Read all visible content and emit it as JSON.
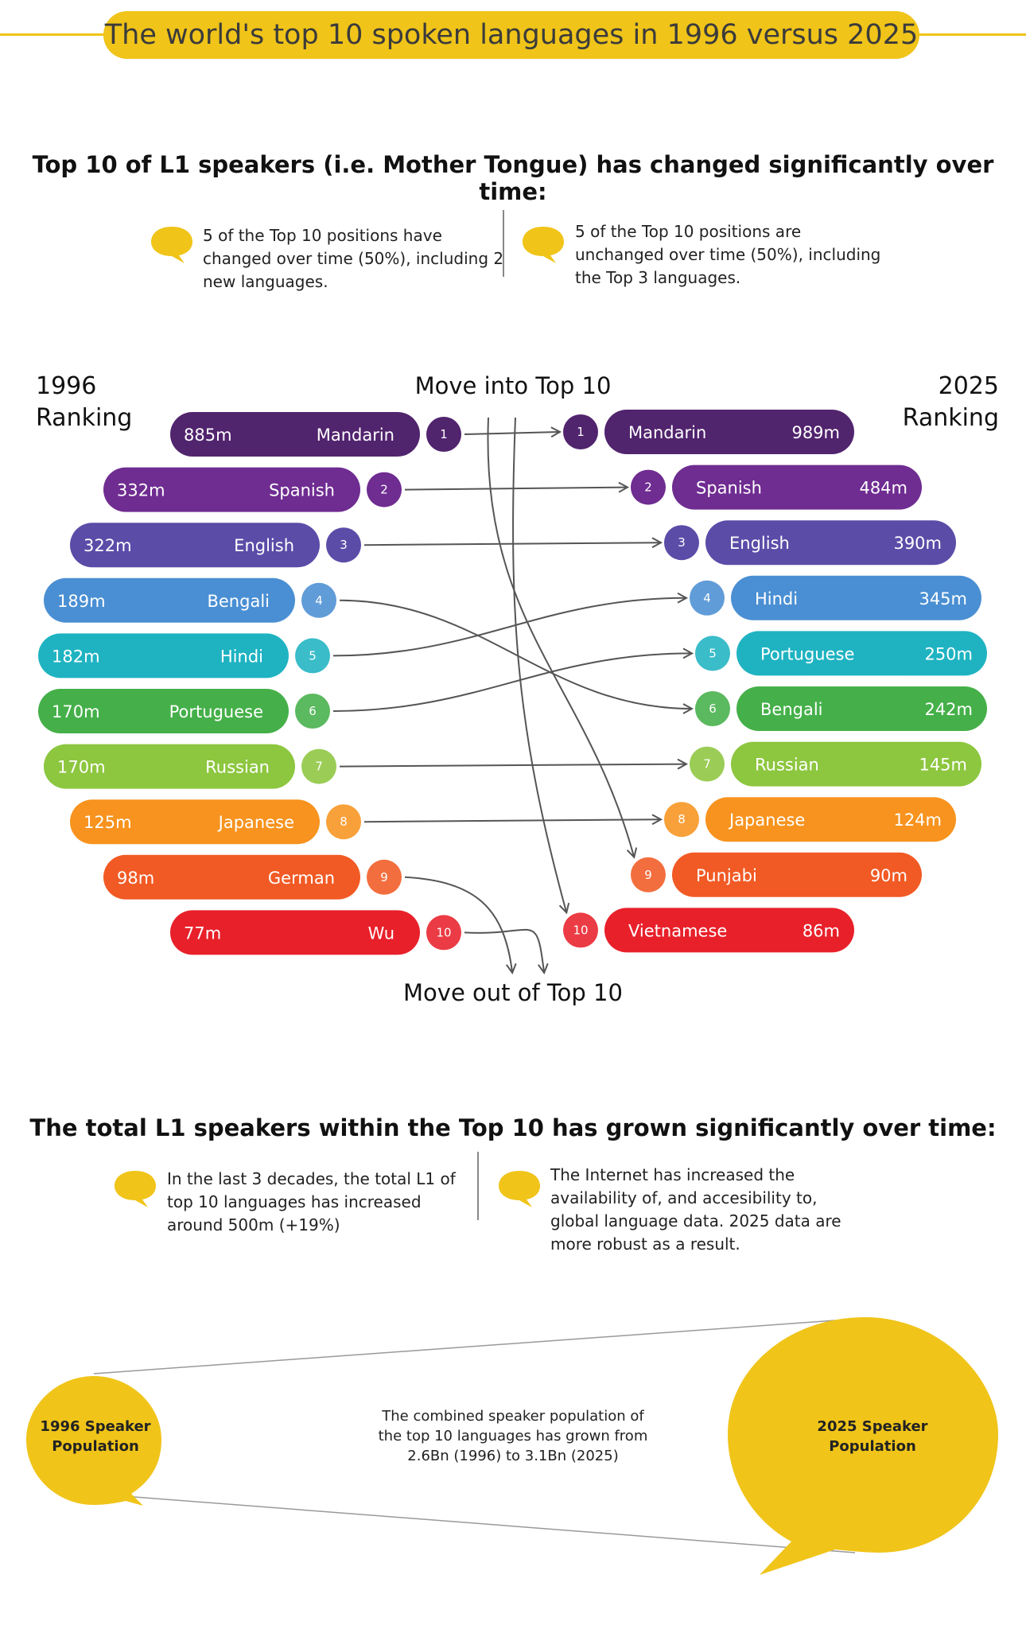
{
  "title": "The world's top 10 spoken languages in 1996 versus 2025",
  "section1": {
    "heading": "Top 10 of L1 speakers (i.e. Mother Tongue) has changed significantly over time:",
    "note_left": "5 of the Top 10 positions have changed over time (50%), including 2 new languages.",
    "note_right": "5 of the Top 10 positions are unchanged over time (50%), including the Top 3 languages."
  },
  "section2": {
    "heading": "The total L1 speakers within the Top 10 has grown significantly over time:",
    "note_left": "In the last 3 decades, the total L1 of top 10 languages has increased around 500m (+19%)",
    "note_right": "The Internet has increased the availability of, and accesibility to, global language data. 2025 data are more robust as a result."
  },
  "population": {
    "label_1996": "1996 Speaker Population",
    "label_2025": "2025 Speaker Population",
    "text": "The combined speaker population of the top 10 languages has grown from 2.6Bn (1996) to 3.1Bn (2025)",
    "total_1996_bn": 2.6,
    "total_2025_bn": 3.1
  },
  "colors": {
    "accent_yellow": "#f0c419",
    "arrow_gray": "#555555"
  },
  "chart_data": {
    "type": "slope",
    "left_heading": "1996 Ranking",
    "right_heading": "2025 Ranking",
    "top_label": "Move into Top 10",
    "bottom_label": "Move out of Top 10",
    "rank_colors": [
      "#51246e",
      "#6f2c91",
      "#5b4ca8",
      "#4a8fd3",
      "#1fb3c2",
      "#45b049",
      "#8dc63f",
      "#f7931e",
      "#f15a24",
      "#e8202a"
    ],
    "left": [
      {
        "rank": "1",
        "language": "Mandarin",
        "speakers": "885m"
      },
      {
        "rank": "2",
        "language": "Spanish",
        "speakers": "332m"
      },
      {
        "rank": "3",
        "language": "English",
        "speakers": "322m"
      },
      {
        "rank": "4",
        "language": "Bengali",
        "speakers": "189m"
      },
      {
        "rank": "5",
        "language": "Hindi",
        "speakers": "182m"
      },
      {
        "rank": "6",
        "language": "Portuguese",
        "speakers": "170m"
      },
      {
        "rank": "7",
        "language": "Russian",
        "speakers": "170m"
      },
      {
        "rank": "8",
        "language": "Japanese",
        "speakers": "125m"
      },
      {
        "rank": "9",
        "language": "German",
        "speakers": "98m"
      },
      {
        "rank": "10",
        "language": "Wu",
        "speakers": "77m"
      }
    ],
    "right": [
      {
        "rank": "1",
        "language": "Mandarin",
        "speakers": "989m"
      },
      {
        "rank": "2",
        "language": "Spanish",
        "speakers": "484m"
      },
      {
        "rank": "3",
        "language": "English",
        "speakers": "390m"
      },
      {
        "rank": "4",
        "language": "Hindi",
        "speakers": "345m"
      },
      {
        "rank": "5",
        "language": "Portuguese",
        "speakers": "250m"
      },
      {
        "rank": "6",
        "language": "Bengali",
        "speakers": "242m"
      },
      {
        "rank": "7",
        "language": "Russian",
        "speakers": "145m"
      },
      {
        "rank": "8",
        "language": "Japanese",
        "speakers": "124m"
      },
      {
        "rank": "9",
        "language": "Punjabi",
        "speakers": "90m"
      },
      {
        "rank": "10",
        "language": "Vietnamese",
        "speakers": "86m"
      }
    ],
    "movements": [
      {
        "from": "1",
        "to": "1"
      },
      {
        "from": "2",
        "to": "2"
      },
      {
        "from": "3",
        "to": "3"
      },
      {
        "from": "4",
        "to": "6"
      },
      {
        "from": "5",
        "to": "4"
      },
      {
        "from": "6",
        "to": "5"
      },
      {
        "from": "7",
        "to": "7"
      },
      {
        "from": "8",
        "to": "8"
      },
      {
        "from": "9",
        "to": "out"
      },
      {
        "from": "10",
        "to": "out"
      },
      {
        "from": "in",
        "to": "9"
      },
      {
        "from": "in",
        "to": "10"
      }
    ]
  }
}
